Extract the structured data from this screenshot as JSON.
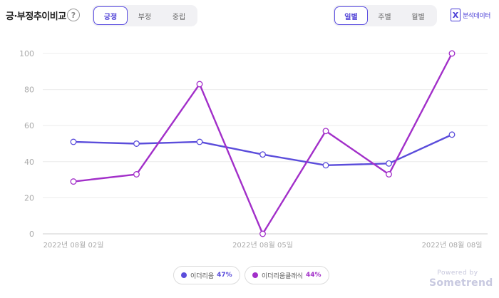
{
  "header": {
    "title": "긍·부정추이비교",
    "help_glyph": "?",
    "sentiment_tabs": [
      {
        "label": "긍정",
        "active": true
      },
      {
        "label": "부정",
        "active": false
      },
      {
        "label": "중립",
        "active": false
      }
    ],
    "period_tabs": [
      {
        "label": "일별",
        "active": true
      },
      {
        "label": "주별",
        "active": false
      },
      {
        "label": "월별",
        "active": false
      }
    ],
    "export_icon": "excel-icon",
    "export_icon_glyph": "X",
    "export_label": "분석데이터"
  },
  "chart_data": {
    "type": "line",
    "x": [
      "2022-08-02",
      "2022-08-03",
      "2022-08-04",
      "2022-08-05",
      "2022-08-06",
      "2022-08-07",
      "2022-08-08"
    ],
    "x_tick_labels": [
      "2022년 08월 02일",
      "",
      "",
      "2022년 08월 05일",
      "",
      "",
      "2022년 08월 08일"
    ],
    "ylim": [
      0,
      100
    ],
    "y_ticks": [
      0,
      20,
      40,
      60,
      80,
      100
    ],
    "grid": true,
    "legend_position": "bottom-center",
    "series": [
      {
        "name": "이더리움",
        "percent": "47%",
        "color": "#5b4ddb",
        "values": [
          51,
          50,
          51,
          44,
          38,
          39,
          55
        ]
      },
      {
        "name": "이더리움클래식",
        "percent": "44%",
        "color": "#a22fc9",
        "values": [
          29,
          33,
          83,
          0,
          57,
          33,
          100
        ]
      }
    ]
  },
  "branding": {
    "powered_label": "Powered by",
    "brand": "Sometrend"
  }
}
